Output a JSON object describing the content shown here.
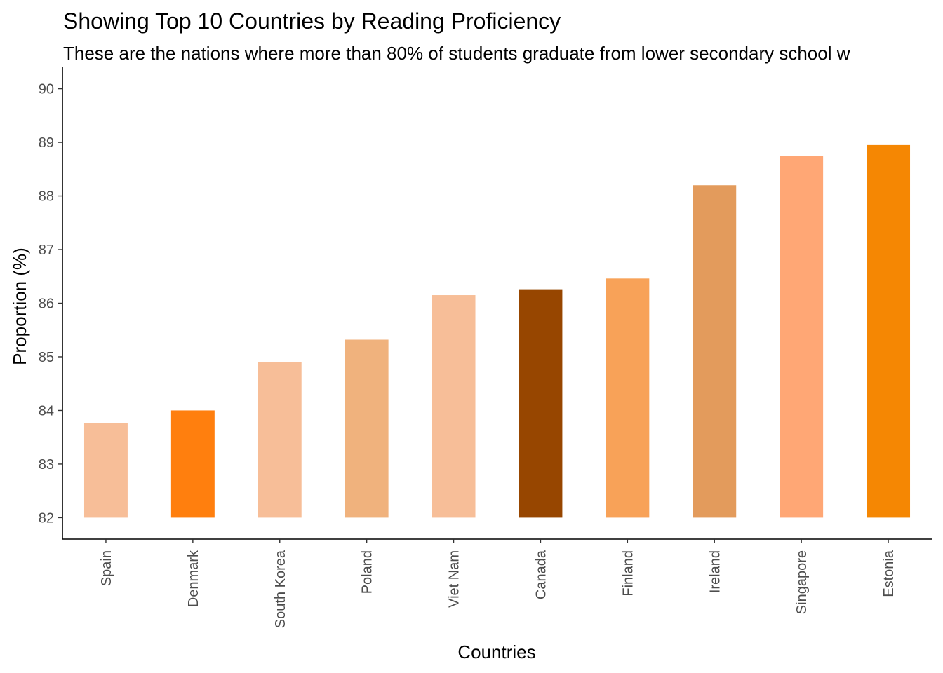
{
  "chart_data": {
    "type": "bar",
    "title": "Showing Top 10 Countries by Reading Proficiency",
    "subtitle": "These are the nations where more than 80% of students graduate from lower secondary school w",
    "xlabel": "Countries",
    "ylabel": "Proportion (%)",
    "ylim": [
      81.6,
      90.4
    ],
    "yticks": [
      82,
      83,
      84,
      85,
      86,
      87,
      88,
      89,
      90
    ],
    "ytick_labels": [
      "82",
      "83",
      "84",
      "85",
      "86",
      "87",
      "88",
      "89",
      "90"
    ],
    "baseline": 82,
    "grid": false,
    "legend": "none",
    "categories": [
      "Spain",
      "Denmark",
      "South Korea",
      "Poland",
      "Viet Nam",
      "Canada",
      "Finland",
      "Ireland",
      "Singapore",
      "Estonia"
    ],
    "values": [
      83.76,
      84.0,
      84.9,
      85.32,
      86.15,
      86.26,
      86.46,
      88.2,
      88.75,
      88.95
    ],
    "colors": [
      "#F7BE98",
      "#FF7F0E",
      "#F7BE98",
      "#F0B27D",
      "#F7BE98",
      "#974600",
      "#F8A258",
      "#E39B5C",
      "#FFA775",
      "#F58703"
    ]
  }
}
